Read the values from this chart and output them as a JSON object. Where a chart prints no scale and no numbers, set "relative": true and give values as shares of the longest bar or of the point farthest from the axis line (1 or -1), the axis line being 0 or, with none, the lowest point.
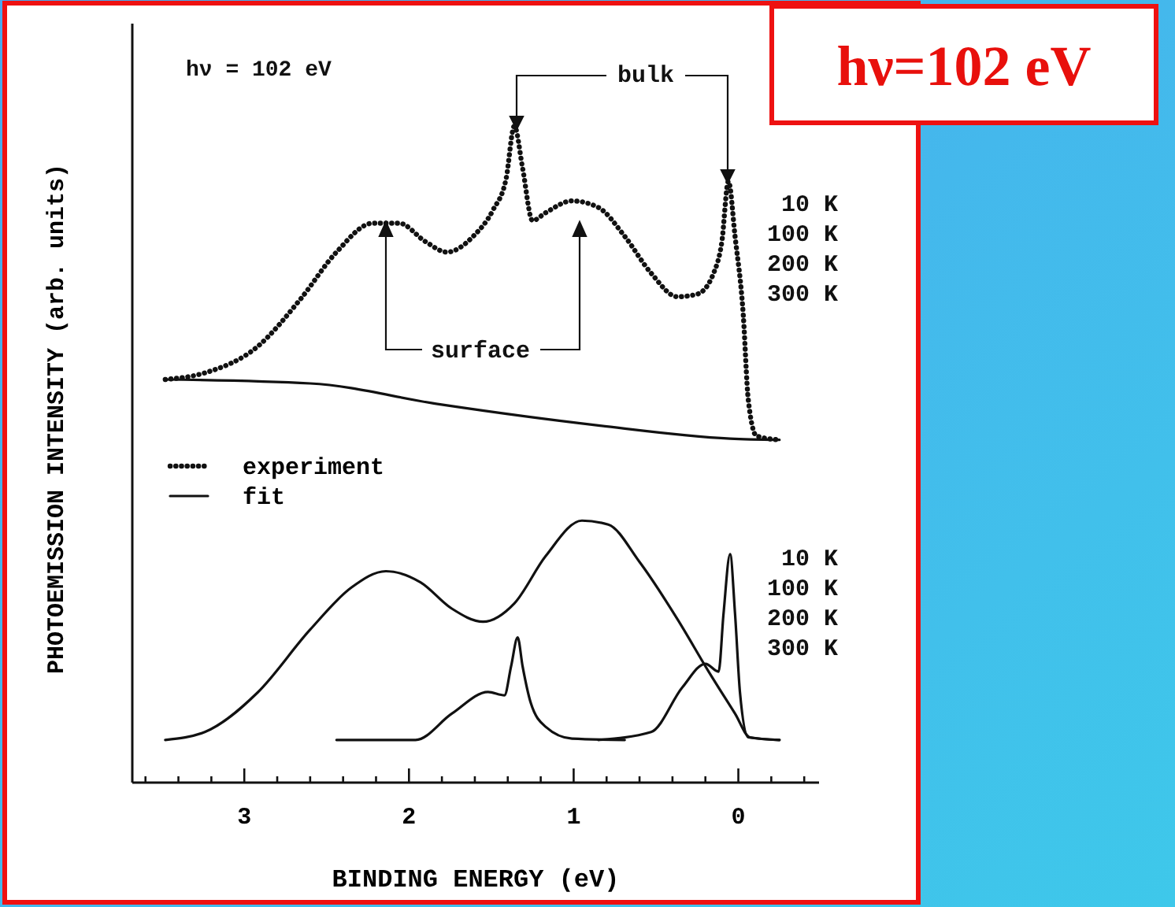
{
  "chart_data": {
    "type": "line",
    "title": "hν=102 eV",
    "xlabel": "BINDING ENERGY (eV)",
    "ylabel": "PHOTOEMISSION INTENSITY (arb. units)",
    "relative": true,
    "xlim": [
      3.68,
      -0.49
    ],
    "xticks": [
      {
        "value": 3.6,
        "label": null
      },
      {
        "value": 3.4,
        "label": null
      },
      {
        "value": 3.2,
        "label": null
      },
      3,
      {
        "value": 2.8,
        "label": null
      },
      {
        "value": 2.6,
        "label": null
      },
      {
        "value": 2.4,
        "label": null
      },
      {
        "value": 2.2,
        "label": null
      },
      2,
      {
        "value": 1.8,
        "label": null
      },
      {
        "value": 1.6,
        "label": null
      },
      {
        "value": 1.4,
        "label": null
      },
      {
        "value": 1.2,
        "label": null
      },
      1,
      {
        "value": 0.8,
        "label": null
      },
      {
        "value": 0.6,
        "label": null
      },
      {
        "value": 0.4,
        "label": null
      },
      {
        "value": 0.2,
        "label": null
      },
      0,
      {
        "value": -0.2,
        "label": null
      },
      {
        "value": -0.4,
        "label": null
      }
    ],
    "legend": "left",
    "grid": false,
    "annotations": [
      "hν = 102 eV",
      "bulk",
      "surface",
      "10 K",
      "100 K",
      "200 K",
      "300 K",
      "10 K",
      "100 K",
      "200 K",
      "300 K"
    ],
    "series": [
      {
        "name": "experiment",
        "color": "#111111",
        "line_style": "dotted",
        "x": [
          3.48,
          3.24,
          2.92,
          2.66,
          2.44,
          2.22,
          2.06,
          1.9,
          1.77,
          1.61,
          1.49,
          1.41,
          1.36,
          1.31,
          1.25,
          1.17,
          1.01,
          0.85,
          0.69,
          0.53,
          0.37,
          0.25,
          0.15,
          0.1,
          0.06,
          0.02,
          -0.03,
          -0.06,
          -0.11,
          -0.25
        ],
        "values": [
          0.614,
          0.624,
          0.664,
          0.736,
          0.808,
          0.852,
          0.852,
          0.824,
          0.808,
          0.832,
          0.872,
          0.92,
          1.0,
          0.936,
          0.856,
          0.868,
          0.886,
          0.876,
          0.832,
          0.776,
          0.74,
          0.744,
          0.776,
          0.824,
          0.916,
          0.832,
          0.712,
          0.584,
          0.528,
          0.522
        ]
      },
      {
        "color": "#111111",
        "line_style": "solid",
        "x": [
          3.48,
          2.6,
          1.81,
          0.85,
          0.05,
          -0.25
        ],
        "values": [
          0.614,
          0.608,
          0.576,
          0.544,
          0.524,
          0.522
        ]
      },
      {
        "name": "fit",
        "color": "#111111",
        "line_style": "solid",
        "x": [
          3.48,
          3.24,
          2.92,
          2.6,
          2.35,
          2.14,
          1.93,
          1.74,
          1.55,
          1.36,
          1.17,
          0.95,
          0.79,
          0.6,
          0.37,
          0.18,
          0.02,
          -0.07,
          -0.25
        ],
        "values": [
          0.065,
          0.077,
          0.137,
          0.233,
          0.297,
          0.322,
          0.305,
          0.265,
          0.245,
          0.273,
          0.345,
          0.399,
          0.393,
          0.336,
          0.249,
          0.169,
          0.105,
          0.069,
          0.065
        ]
      },
      {
        "color": "#111111",
        "line_style": "solid",
        "x": [
          2.44,
          1.96,
          1.74,
          1.52,
          1.42,
          1.38,
          1.34,
          1.31,
          1.26,
          1.17,
          1.01,
          0.69
        ],
        "values": [
          0.065,
          0.065,
          0.105,
          0.138,
          0.133,
          0.177,
          0.221,
          0.177,
          0.121,
          0.085,
          0.067,
          0.065
        ]
      },
      {
        "color": "#111111",
        "line_style": "solid",
        "x": [
          0.85,
          0.53,
          0.34,
          0.2,
          0.12,
          0.09,
          0.05,
          0.02,
          -0.01,
          -0.06,
          -0.25
        ],
        "values": [
          0.065,
          0.077,
          0.145,
          0.181,
          0.169,
          0.257,
          0.348,
          0.257,
          0.137,
          0.069,
          0.065
        ]
      }
    ]
  }
}
